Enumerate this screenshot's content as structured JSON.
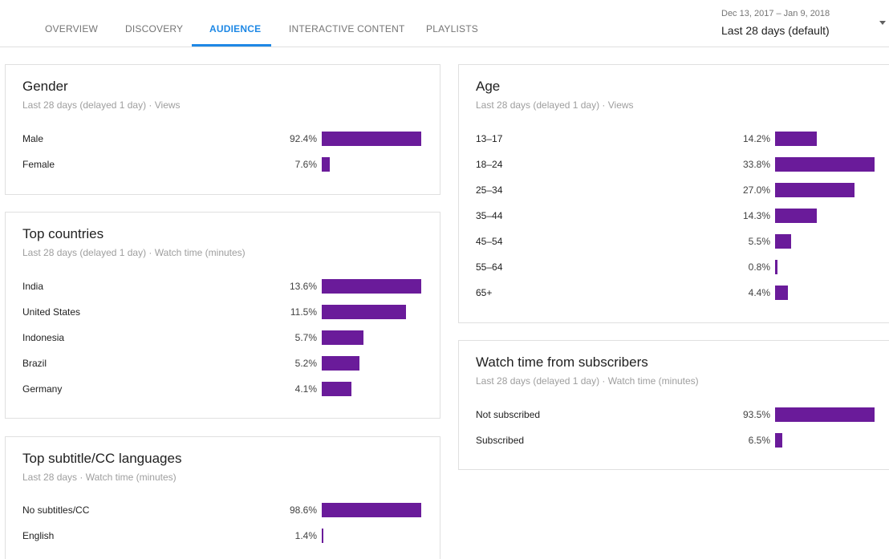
{
  "colors": {
    "accent": "#1e88e5",
    "bar": "#6a1b9a"
  },
  "tabs": [
    {
      "label": "OVERVIEW",
      "active": false
    },
    {
      "label": "DISCOVERY",
      "active": false
    },
    {
      "label": "AUDIENCE",
      "active": true
    },
    {
      "label": "INTERACTIVE CONTENT",
      "active": false
    },
    {
      "label": "PLAYLISTS",
      "active": false
    }
  ],
  "date_range": {
    "span": "Dec 13, 2017 – Jan 9, 2018",
    "label": "Last 28 days (default)",
    "icon": "caret-down-icon"
  },
  "cards": {
    "gender": {
      "title": "Gender",
      "subtitle": "Last 28 days (delayed 1 day) · Views",
      "rows": [
        {
          "label": "Male",
          "pct": "92.4%",
          "value": 92.4
        },
        {
          "label": "Female",
          "pct": "7.6%",
          "value": 7.6
        }
      ]
    },
    "countries": {
      "title": "Top countries",
      "subtitle": "Last 28 days (delayed 1 day) · Watch time (minutes)",
      "rows": [
        {
          "label": "India",
          "pct": "13.6%",
          "value": 13.6
        },
        {
          "label": "United States",
          "pct": "11.5%",
          "value": 11.5
        },
        {
          "label": "Indonesia",
          "pct": "5.7%",
          "value": 5.7
        },
        {
          "label": "Brazil",
          "pct": "5.2%",
          "value": 5.2
        },
        {
          "label": "Germany",
          "pct": "4.1%",
          "value": 4.1
        }
      ]
    },
    "subtitles": {
      "title": "Top subtitle/CC languages",
      "subtitle": "Last 28 days · Watch time (minutes)",
      "rows": [
        {
          "label": "No subtitles/CC",
          "pct": "98.6%",
          "value": 98.6
        },
        {
          "label": "English",
          "pct": "1.4%",
          "value": 1.4
        }
      ]
    },
    "age": {
      "title": "Age",
      "subtitle": "Last 28 days (delayed 1 day) · Views",
      "rows": [
        {
          "label": "13–17",
          "pct": "14.2%",
          "value": 14.2
        },
        {
          "label": "18–24",
          "pct": "33.8%",
          "value": 33.8
        },
        {
          "label": "25–34",
          "pct": "27.0%",
          "value": 27.0
        },
        {
          "label": "35–44",
          "pct": "14.3%",
          "value": 14.3
        },
        {
          "label": "45–54",
          "pct": "5.5%",
          "value": 5.5
        },
        {
          "label": "55–64",
          "pct": "0.8%",
          "value": 0.8
        },
        {
          "label": "65+",
          "pct": "4.4%",
          "value": 4.4
        }
      ]
    },
    "subscribers": {
      "title": "Watch time from subscribers",
      "subtitle": "Last 28 days (delayed 1 day) · Watch time (minutes)",
      "rows": [
        {
          "label": "Not subscribed",
          "pct": "93.5%",
          "value": 93.5
        },
        {
          "label": "Subscribed",
          "pct": "6.5%",
          "value": 6.5
        }
      ]
    }
  }
}
